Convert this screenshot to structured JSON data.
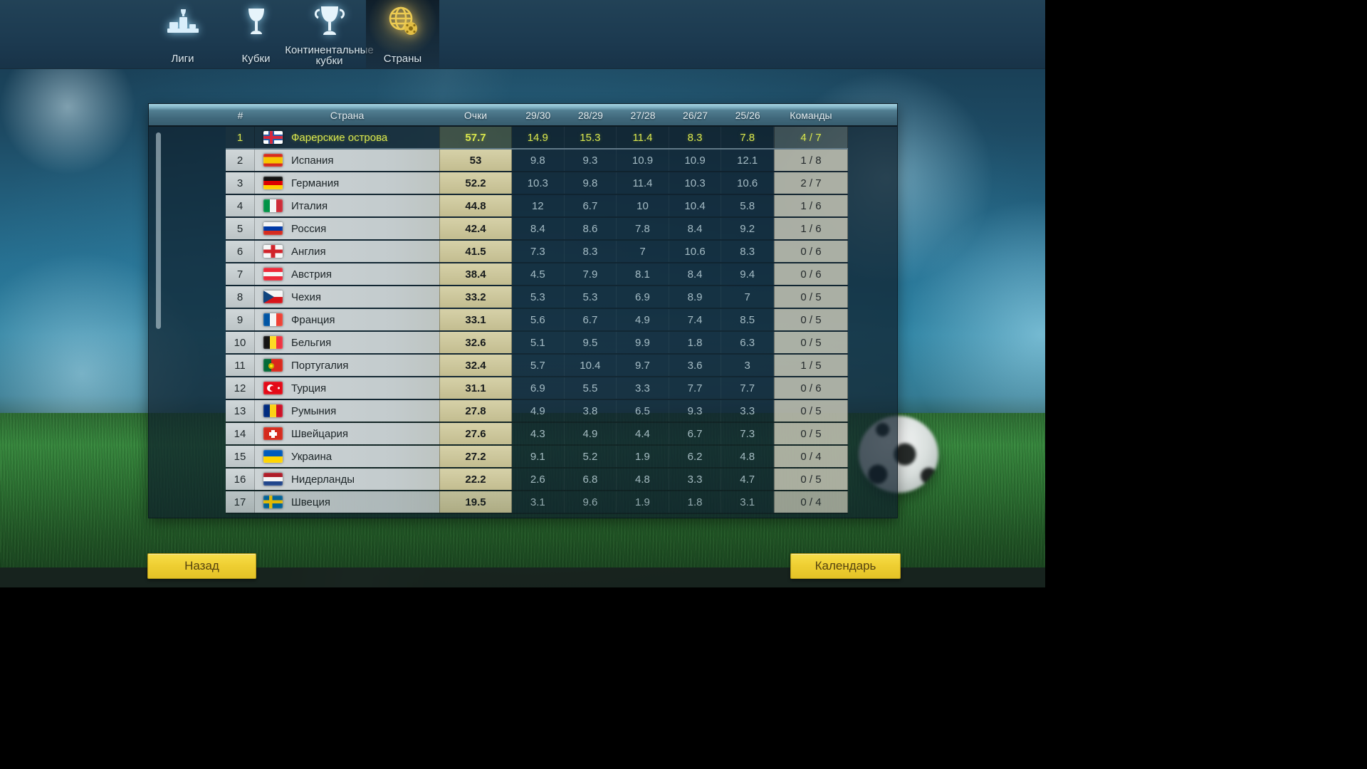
{
  "tabs": [
    {
      "label": "Лиги",
      "icon": "podium-icon",
      "active": false
    },
    {
      "label": "Кубки",
      "icon": "cup-icon",
      "active": false
    },
    {
      "label": "Континентальные кубки",
      "icon": "continental-cup-icon",
      "active": false
    },
    {
      "label": "Страны",
      "icon": "globe-icon",
      "active": true
    }
  ],
  "table": {
    "headers": {
      "rank": "#",
      "country": "Страна",
      "points": "Очки",
      "seasons": [
        "29/30",
        "28/29",
        "27/28",
        "26/27",
        "25/26"
      ],
      "teams": "Команды"
    },
    "rows": [
      {
        "rank": "1",
        "country": "Фарерские острова",
        "flag": "fo",
        "points": "57.7",
        "seasons": [
          "14.9",
          "15.3",
          "11.4",
          "8.3",
          "7.8"
        ],
        "teams": "4 / 7",
        "selected": true
      },
      {
        "rank": "2",
        "country": "Испания",
        "flag": "es",
        "points": "53",
        "seasons": [
          "9.8",
          "9.3",
          "10.9",
          "10.9",
          "12.1"
        ],
        "teams": "1 / 8",
        "selected": false
      },
      {
        "rank": "3",
        "country": "Германия",
        "flag": "de",
        "points": "52.2",
        "seasons": [
          "10.3",
          "9.8",
          "11.4",
          "10.3",
          "10.6"
        ],
        "teams": "2 / 7",
        "selected": false
      },
      {
        "rank": "4",
        "country": "Италия",
        "flag": "it",
        "points": "44.8",
        "seasons": [
          "12",
          "6.7",
          "10",
          "10.4",
          "5.8"
        ],
        "teams": "1 / 6",
        "selected": false
      },
      {
        "rank": "5",
        "country": "Россия",
        "flag": "ru",
        "points": "42.4",
        "seasons": [
          "8.4",
          "8.6",
          "7.8",
          "8.4",
          "9.2"
        ],
        "teams": "1 / 6",
        "selected": false
      },
      {
        "rank": "6",
        "country": "Англия",
        "flag": "en",
        "points": "41.5",
        "seasons": [
          "7.3",
          "8.3",
          "7",
          "10.6",
          "8.3"
        ],
        "teams": "0 / 6",
        "selected": false
      },
      {
        "rank": "7",
        "country": "Австрия",
        "flag": "at",
        "points": "38.4",
        "seasons": [
          "4.5",
          "7.9",
          "8.1",
          "8.4",
          "9.4"
        ],
        "teams": "0 / 6",
        "selected": false
      },
      {
        "rank": "8",
        "country": "Чехия",
        "flag": "cz",
        "points": "33.2",
        "seasons": [
          "5.3",
          "5.3",
          "6.9",
          "8.9",
          "7"
        ],
        "teams": "0 / 5",
        "selected": false
      },
      {
        "rank": "9",
        "country": "Франция",
        "flag": "fr",
        "points": "33.1",
        "seasons": [
          "5.6",
          "6.7",
          "4.9",
          "7.4",
          "8.5"
        ],
        "teams": "0 / 5",
        "selected": false
      },
      {
        "rank": "10",
        "country": "Бельгия",
        "flag": "be",
        "points": "32.6",
        "seasons": [
          "5.1",
          "9.5",
          "9.9",
          "1.8",
          "6.3"
        ],
        "teams": "0 / 5",
        "selected": false
      },
      {
        "rank": "11",
        "country": "Португалия",
        "flag": "pt",
        "points": "32.4",
        "seasons": [
          "5.7",
          "10.4",
          "9.7",
          "3.6",
          "3"
        ],
        "teams": "1 / 5",
        "selected": false
      },
      {
        "rank": "12",
        "country": "Турция",
        "flag": "tr",
        "points": "31.1",
        "seasons": [
          "6.9",
          "5.5",
          "3.3",
          "7.7",
          "7.7"
        ],
        "teams": "0 / 6",
        "selected": false
      },
      {
        "rank": "13",
        "country": "Румыния",
        "flag": "ro",
        "points": "27.8",
        "seasons": [
          "4.9",
          "3.8",
          "6.5",
          "9.3",
          "3.3"
        ],
        "teams": "0 / 5",
        "selected": false
      },
      {
        "rank": "14",
        "country": "Швейцария",
        "flag": "ch",
        "points": "27.6",
        "seasons": [
          "4.3",
          "4.9",
          "4.4",
          "6.7",
          "7.3"
        ],
        "teams": "0 / 5",
        "selected": false
      },
      {
        "rank": "15",
        "country": "Украина",
        "flag": "ua",
        "points": "27.2",
        "seasons": [
          "9.1",
          "5.2",
          "1.9",
          "6.2",
          "4.8"
        ],
        "teams": "0 / 4",
        "selected": false
      },
      {
        "rank": "16",
        "country": "Нидерланды",
        "flag": "nl",
        "points": "22.2",
        "seasons": [
          "2.6",
          "6.8",
          "4.8",
          "3.3",
          "4.7"
        ],
        "teams": "0 / 5",
        "selected": false
      },
      {
        "rank": "17",
        "country": "Швеция",
        "flag": "se",
        "points": "19.5",
        "seasons": [
          "3.1",
          "9.6",
          "1.9",
          "1.8",
          "3.1"
        ],
        "teams": "0 / 4",
        "selected": false
      }
    ]
  },
  "buttons": {
    "back": "Назад",
    "calendar": "Календарь"
  },
  "colors": {
    "accent_yellow": "#efcf33",
    "selected_text": "#dbe84e",
    "header_teal": "#40687b",
    "points_khaki": "#cdc79b",
    "nav_navy": "#1c3a50"
  }
}
